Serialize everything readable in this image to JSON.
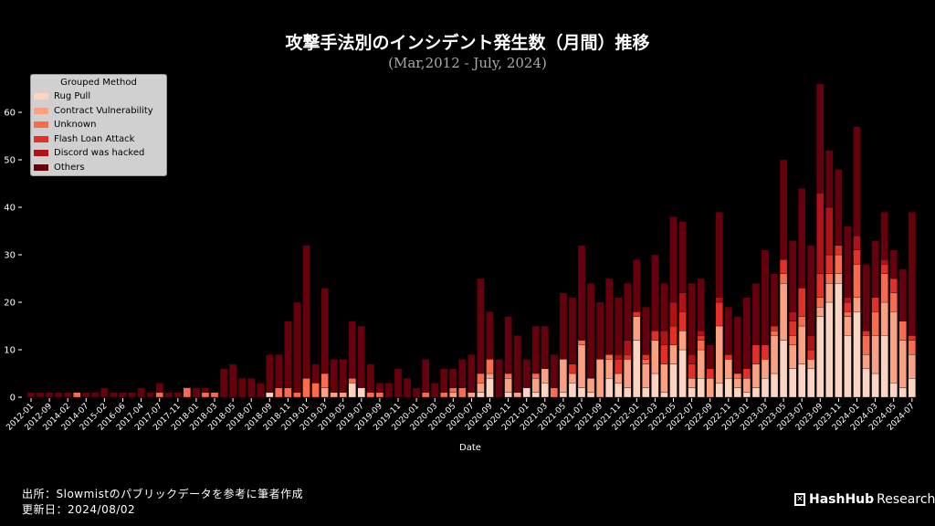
{
  "title": "攻撃手法別のインシデント発生数（月間）推移",
  "subtitle": "(Mar,2012 - July, 2024)",
  "footer": {
    "source": "出所：Slowmistのパブリックデータを参考に筆者作成",
    "updated": "更新日：2024/08/02"
  },
  "logo": {
    "brand": "HashHub",
    "suffix": "Research"
  },
  "chart_data": {
    "type": "bar",
    "stacked": true,
    "title": "攻撃手法別のインシデント発生数（月間）推移",
    "xlabel": "Date",
    "ylabel": "",
    "ylim": [
      0,
      68
    ],
    "yticks": [
      0,
      10,
      20,
      30,
      40,
      50,
      60
    ],
    "legend": {
      "title": "Grouped Method",
      "placement": "top-left"
    },
    "tick_labels": [
      "2012-01",
      "2012-09",
      "2014-02",
      "2014-07",
      "2015-02",
      "2016-06",
      "2017-04",
      "2017-07",
      "2017-11",
      "2018-01",
      "2018-03",
      "2018-05",
      "2018-07",
      "2018-09",
      "2018-11",
      "2019-01",
      "2019-03",
      "2019-05",
      "2019-07",
      "2019-09",
      "2019-11",
      "2020-01",
      "2020-03",
      "2020-05",
      "2020-07",
      "2020-09",
      "2020-11",
      "2021-01",
      "2021-03",
      "2021-05",
      "2021-07",
      "2021-09",
      "2021-11",
      "2022-01",
      "2022-03",
      "2022-05",
      "2022-07",
      "2022-09",
      "2022-11",
      "2023-01",
      "2023-03",
      "2023-05",
      "2023-07",
      "2023-09",
      "2023-11",
      "2024-01",
      "2024-03",
      "2024-05",
      "2024-07"
    ],
    "tick_every": 2,
    "series": [
      {
        "name": "Rug Pull",
        "color": "#fdd4c2",
        "values": [
          0,
          0,
          0,
          0,
          0,
          0,
          0,
          0,
          0,
          0,
          0,
          0,
          0,
          0,
          0,
          0,
          0,
          0,
          0,
          0,
          0,
          0,
          0,
          0,
          0,
          0,
          1,
          0,
          0,
          0,
          0,
          0,
          0,
          0,
          0,
          3,
          2,
          0,
          0,
          0,
          0,
          0,
          0,
          0,
          0,
          0,
          0,
          0,
          0,
          1,
          4,
          0,
          1,
          0,
          2,
          1,
          3,
          0,
          1,
          3,
          2,
          1,
          0,
          4,
          3,
          2,
          12,
          2,
          5,
          1,
          7,
          10,
          2,
          4,
          0,
          3,
          4,
          2,
          1,
          2,
          4,
          5,
          12,
          6,
          7,
          6,
          17,
          20,
          24,
          13,
          18,
          6,
          5,
          13,
          3,
          2,
          4
        ]
      },
      {
        "name": "Contract Vulnerability",
        "color": "#fca082",
        "values": [
          0,
          0,
          0,
          0,
          0,
          0,
          0,
          0,
          0,
          0,
          0,
          0,
          0,
          0,
          0,
          0,
          0,
          0,
          0,
          0,
          0,
          0,
          0,
          0,
          0,
          0,
          0,
          0,
          0,
          0,
          0,
          0,
          2,
          1,
          1,
          0,
          0,
          0,
          0,
          0,
          0,
          0,
          0,
          0,
          0,
          0,
          1,
          0,
          1,
          2,
          1,
          0,
          3,
          1,
          0,
          3,
          3,
          0,
          7,
          2,
          9,
          3,
          8,
          4,
          2,
          6,
          5,
          5,
          7,
          6,
          4,
          4,
          2,
          6,
          4,
          12,
          4,
          2,
          3,
          5,
          4,
          8,
          12,
          5,
          8,
          2,
          2,
          4,
          2,
          4,
          3,
          3,
          8,
          7,
          15,
          10,
          5
        ]
      },
      {
        "name": "Unknown",
        "color": "#fb6b4b",
        "values": [
          0,
          0,
          0,
          0,
          0,
          1,
          0,
          0,
          0,
          0,
          0,
          0,
          0,
          0,
          1,
          0,
          0,
          2,
          0,
          1,
          1,
          0,
          0,
          0,
          0,
          0,
          0,
          2,
          2,
          1,
          4,
          3,
          3,
          0,
          0,
          1,
          0,
          1,
          1,
          0,
          0,
          0,
          0,
          1,
          0,
          1,
          1,
          2,
          0,
          2,
          3,
          0,
          1,
          0,
          0,
          1,
          0,
          2,
          0,
          0,
          1,
          0,
          0,
          1,
          0,
          0,
          0,
          1,
          0,
          0,
          0,
          0,
          0,
          2,
          0,
          0,
          0,
          1,
          0,
          0,
          0,
          1,
          2,
          2,
          2,
          0,
          2,
          2,
          4,
          1,
          7,
          4,
          5,
          6,
          4,
          4,
          3
        ]
      },
      {
        "name": "Flash Loan Attack",
        "color": "#e32f27",
        "values": [
          0,
          0,
          0,
          0,
          0,
          0,
          0,
          0,
          0,
          0,
          0,
          0,
          0,
          0,
          0,
          0,
          0,
          0,
          0,
          0,
          0,
          0,
          0,
          0,
          0,
          0,
          0,
          0,
          0,
          0,
          0,
          0,
          0,
          0,
          0,
          0,
          0,
          0,
          0,
          0,
          0,
          0,
          0,
          0,
          0,
          0,
          0,
          0,
          0,
          0,
          0,
          0,
          0,
          0,
          0,
          0,
          0,
          0,
          0,
          2,
          0,
          0,
          0,
          0,
          3,
          1,
          1,
          1,
          2,
          4,
          4,
          4,
          3,
          1,
          2,
          5,
          1,
          0,
          2,
          4,
          3,
          1,
          3,
          3,
          6,
          2,
          5,
          4,
          2,
          2,
          3,
          1,
          3,
          2,
          3,
          0,
          1
        ]
      },
      {
        "name": "Discord was hacked",
        "color": "#b11218",
        "values": [
          0,
          0,
          0,
          0,
          0,
          0,
          0,
          0,
          0,
          0,
          0,
          0,
          0,
          0,
          0,
          0,
          0,
          0,
          0,
          0,
          0,
          0,
          0,
          0,
          0,
          0,
          0,
          0,
          0,
          0,
          0,
          0,
          0,
          0,
          0,
          0,
          0,
          0,
          0,
          0,
          0,
          0,
          0,
          0,
          0,
          0,
          0,
          0,
          0,
          0,
          0,
          0,
          0,
          0,
          0,
          0,
          0,
          0,
          0,
          0,
          0,
          0,
          0,
          0,
          1,
          3,
          0,
          0,
          0,
          3,
          5,
          4,
          2,
          1,
          0,
          1,
          0,
          0,
          0,
          0,
          0,
          0,
          0,
          2,
          0,
          3,
          17,
          10,
          0,
          1,
          3,
          0,
          0,
          1,
          0,
          0,
          0
        ]
      },
      {
        "name": "Others",
        "color": "#67000d",
        "values": [
          1,
          1,
          1,
          1,
          1,
          0,
          1,
          1,
          2,
          1,
          1,
          1,
          2,
          1,
          2,
          1,
          1,
          0,
          2,
          1,
          0,
          6,
          7,
          4,
          4,
          3,
          8,
          7,
          14,
          19,
          28,
          4,
          18,
          7,
          7,
          12,
          13,
          6,
          2,
          3,
          6,
          4,
          2,
          7,
          3,
          5,
          4,
          6,
          8,
          20,
          10,
          8,
          12,
          12,
          6,
          10,
          9,
          7,
          14,
          14,
          20,
          20,
          12,
          16,
          12,
          12,
          11,
          10,
          16,
          10,
          18,
          15,
          15,
          11,
          5,
          18,
          10,
          12,
          15,
          13,
          20,
          11,
          21,
          15,
          21,
          19,
          23,
          12,
          16,
          15,
          23,
          14,
          12,
          10,
          6,
          11,
          26
        ]
      }
    ]
  }
}
